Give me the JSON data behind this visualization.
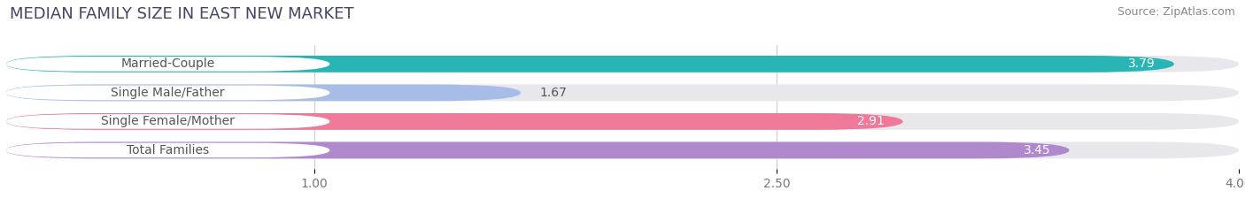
{
  "title": "MEDIAN FAMILY SIZE IN EAST NEW MARKET",
  "source": "Source: ZipAtlas.com",
  "categories": [
    "Married-Couple",
    "Single Male/Father",
    "Single Female/Mother",
    "Total Families"
  ],
  "values": [
    3.79,
    1.67,
    2.91,
    3.45
  ],
  "bar_colors": [
    "#29b5b5",
    "#a8bce8",
    "#f07898",
    "#b088cc"
  ],
  "bar_bg_color": "#e8e8ec",
  "xlim": [
    0,
    4.0
  ],
  "xticks": [
    1.0,
    2.5,
    4.0
  ],
  "label_fontsize": 10,
  "value_fontsize": 10,
  "title_fontsize": 13,
  "source_fontsize": 9,
  "bar_height": 0.58,
  "background_color": "#ffffff",
  "label_text_color": "#555555",
  "value_color_inside": "#ffffff",
  "value_color_outside": "#555555"
}
